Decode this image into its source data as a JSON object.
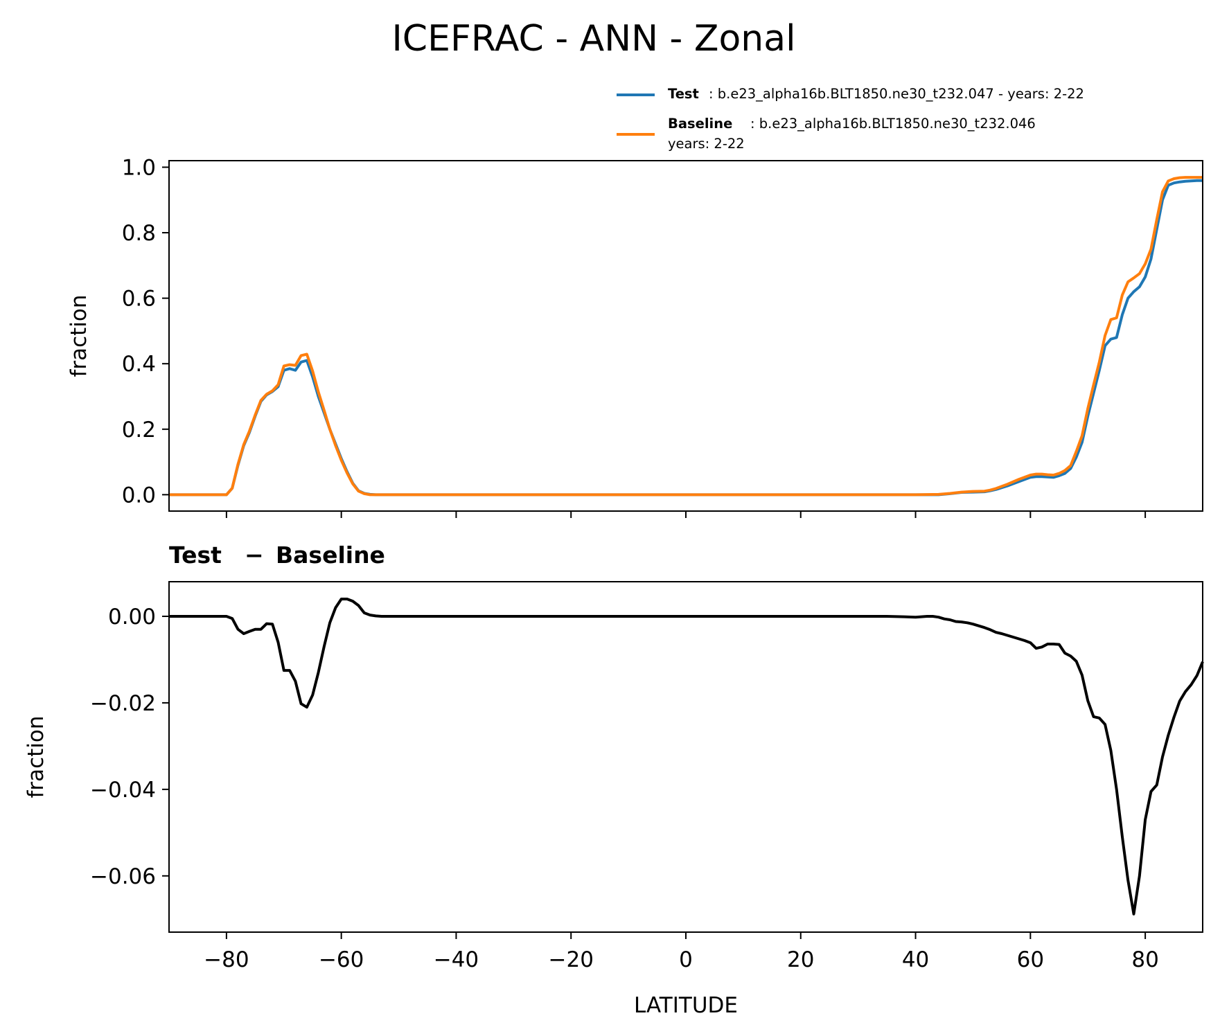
{
  "title": "ICEFRAC - ANN - Zonal",
  "legend": {
    "test": {
      "name": "Test",
      "text": ": b.e23_alpha16b.BLT1850.ne30_t232.047 - years: 2-22",
      "color": "#1f77b4"
    },
    "baseline": {
      "name": "Baseline",
      "text": ": b.e23_alpha16b.BLT1850.ne30_t232.046",
      "text2": "years: 2-22",
      "color": "#ff7f0e"
    }
  },
  "diff_title": {
    "part1": "Test",
    "minus": "−",
    "part2": "Baseline"
  },
  "xlabel": "LATITUDE",
  "chart_data": [
    {
      "type": "line",
      "ylabel": "fraction",
      "xlim": [
        -90,
        90
      ],
      "ylim": [
        -0.05,
        1.02
      ],
      "xticks": [
        -80,
        -60,
        -40,
        -20,
        0,
        20,
        40,
        60,
        80
      ],
      "yticks": [
        0.0,
        0.2,
        0.4,
        0.6,
        0.8,
        1.0
      ],
      "ytick_labels": [
        "0.0",
        "0.2",
        "0.4",
        "0.6",
        "0.8",
        "1.0"
      ],
      "series": [
        {
          "name": "Test",
          "color": "#1f77b4",
          "x": [
            -90,
            -80,
            -79,
            -78,
            -77,
            -76,
            -75,
            -74,
            -73,
            -72,
            -71,
            -70,
            -69,
            -68,
            -67,
            -66,
            -65,
            -64,
            -63,
            -62,
            -61,
            -60,
            -59,
            -58,
            -57,
            -56,
            -55,
            -54,
            -53,
            -52,
            -40,
            -20,
            0,
            20,
            40,
            44,
            46,
            48,
            50,
            52,
            53,
            54,
            56,
            58,
            60,
            61,
            62,
            63,
            64,
            65,
            66,
            67,
            68,
            69,
            70,
            71,
            72,
            73,
            74,
            75,
            76,
            77,
            78,
            79,
            80,
            81,
            82,
            83,
            84,
            85,
            86,
            87,
            88,
            89,
            90
          ],
          "values": [
            0,
            0,
            0.02,
            0.09,
            0.15,
            0.19,
            0.24,
            0.285,
            0.305,
            0.315,
            0.33,
            0.38,
            0.385,
            0.38,
            0.405,
            0.41,
            0.36,
            0.3,
            0.25,
            0.2,
            0.155,
            0.11,
            0.07,
            0.035,
            0.012,
            0.004,
            0.001,
            0,
            0,
            0,
            0,
            0,
            0,
            0,
            0,
            0,
            0.003,
            0.007,
            0.008,
            0.009,
            0.012,
            0.016,
            0.027,
            0.04,
            0.053,
            0.055,
            0.055,
            0.054,
            0.053,
            0.058,
            0.065,
            0.08,
            0.115,
            0.16,
            0.24,
            0.31,
            0.38,
            0.455,
            0.475,
            0.48,
            0.55,
            0.6,
            0.62,
            0.635,
            0.665,
            0.72,
            0.81,
            0.9,
            0.945,
            0.952,
            0.955,
            0.957,
            0.958,
            0.959,
            0.959
          ]
        },
        {
          "name": "Baseline",
          "color": "#ff7f0e",
          "x": [
            -90,
            -80,
            -79,
            -78,
            -77,
            -76,
            -75,
            -74,
            -73,
            -72,
            -71,
            -70,
            -69,
            -68,
            -67,
            -66,
            -65,
            -64,
            -63,
            -62,
            -61,
            -60,
            -59,
            -58,
            -57,
            -56,
            -55,
            -54,
            -53,
            -52,
            -40,
            -20,
            0,
            20,
            40,
            44,
            46,
            48,
            50,
            52,
            53,
            54,
            56,
            58,
            60,
            61,
            62,
            63,
            64,
            65,
            66,
            67,
            68,
            69,
            70,
            71,
            72,
            73,
            74,
            75,
            76,
            77,
            78,
            79,
            80,
            81,
            82,
            83,
            84,
            85,
            86,
            87,
            88,
            89,
            90
          ],
          "values": [
            0,
            0,
            0.02,
            0.093,
            0.153,
            0.194,
            0.243,
            0.288,
            0.307,
            0.317,
            0.336,
            0.393,
            0.397,
            0.395,
            0.425,
            0.429,
            0.378,
            0.314,
            0.258,
            0.2,
            0.15,
            0.105,
            0.066,
            0.033,
            0.011,
            0.003,
            0,
            0,
            0,
            0,
            0,
            0,
            0,
            0,
            0,
            0.001,
            0.004,
            0.008,
            0.01,
            0.011,
            0.014,
            0.019,
            0.032,
            0.047,
            0.06,
            0.063,
            0.063,
            0.061,
            0.06,
            0.065,
            0.074,
            0.089,
            0.132,
            0.18,
            0.263,
            0.335,
            0.405,
            0.486,
            0.535,
            0.54,
            0.61,
            0.65,
            0.662,
            0.675,
            0.705,
            0.75,
            0.84,
            0.925,
            0.958,
            0.965,
            0.968,
            0.969,
            0.969,
            0.969,
            0.969
          ]
        }
      ]
    },
    {
      "type": "line",
      "title": "Test − Baseline",
      "ylabel": "fraction",
      "xlabel": "LATITUDE",
      "xlim": [
        -90,
        90
      ],
      "ylim": [
        -0.073,
        0.008
      ],
      "xticks": [
        -80,
        -60,
        -40,
        -20,
        0,
        20,
        40,
        60,
        80
      ],
      "xtick_labels": [
        "−80",
        "−60",
        "−40",
        "−20",
        "0",
        "20",
        "40",
        "60",
        "80"
      ],
      "yticks": [
        0.0,
        -0.02,
        -0.04,
        -0.06
      ],
      "ytick_labels": [
        "0.00",
        "−0.02",
        "−0.04",
        "−0.06"
      ],
      "series": [
        {
          "name": "Test − Baseline",
          "color": "#000000",
          "x": [
            -90,
            -80,
            -79,
            -78,
            -77,
            -76,
            -75,
            -74,
            -73,
            -72,
            -71,
            -70,
            -69,
            -68,
            -67,
            -66,
            -65,
            -64,
            -63,
            -62,
            -61,
            -60,
            -59,
            -58,
            -57,
            -56,
            -55,
            -54,
            -53,
            -52,
            -40,
            -20,
            0,
            20,
            35,
            38,
            40,
            42,
            43,
            44,
            45,
            46,
            47,
            48,
            49,
            50,
            51,
            52,
            53,
            54,
            55,
            56,
            57,
            58,
            59,
            60,
            61,
            62,
            63,
            64,
            65,
            66,
            67,
            68,
            69,
            70,
            71,
            72,
            73,
            74,
            75,
            76,
            77,
            78,
            79,
            80,
            81,
            82,
            83,
            84,
            85,
            86,
            87,
            88,
            89,
            90
          ],
          "values": [
            0,
            0,
            -0.0005,
            -0.003,
            -0.004,
            -0.0035,
            -0.003,
            -0.003,
            -0.0017,
            -0.0018,
            -0.006,
            -0.0125,
            -0.0125,
            -0.015,
            -0.0202,
            -0.021,
            -0.0182,
            -0.013,
            -0.007,
            -0.0015,
            0.002,
            0.004,
            0.004,
            0.0035,
            0.0025,
            0.0008,
            0.0003,
            0.0001,
            0,
            0,
            0,
            0,
            0,
            0,
            0,
            -0.0001,
            -0.0002,
            0,
            0,
            -0.0002,
            -0.0006,
            -0.0008,
            -0.0012,
            -0.0013,
            -0.0015,
            -0.0018,
            -0.0022,
            -0.0026,
            -0.0031,
            -0.0037,
            -0.004,
            -0.0044,
            -0.0048,
            -0.0052,
            -0.0056,
            -0.0061,
            -0.0074,
            -0.0071,
            -0.0064,
            -0.0064,
            -0.0065,
            -0.0085,
            -0.0092,
            -0.0104,
            -0.0136,
            -0.0195,
            -0.0232,
            -0.0235,
            -0.025,
            -0.031,
            -0.04,
            -0.051,
            -0.061,
            -0.0688,
            -0.06,
            -0.047,
            -0.0405,
            -0.039,
            -0.0325,
            -0.0275,
            -0.0233,
            -0.0196,
            -0.0174,
            -0.0158,
            -0.0137,
            -0.0105
          ]
        }
      ]
    }
  ]
}
